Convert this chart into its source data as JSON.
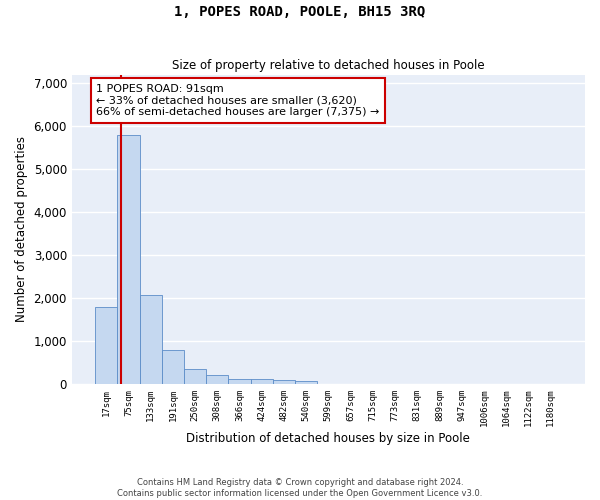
{
  "title": "1, POPES ROAD, POOLE, BH15 3RQ",
  "subtitle": "Size of property relative to detached houses in Poole",
  "xlabel": "Distribution of detached houses by size in Poole",
  "ylabel": "Number of detached properties",
  "categories": [
    "17sqm",
    "75sqm",
    "133sqm",
    "191sqm",
    "250sqm",
    "308sqm",
    "366sqm",
    "424sqm",
    "482sqm",
    "540sqm",
    "599sqm",
    "657sqm",
    "715sqm",
    "773sqm",
    "831sqm",
    "889sqm",
    "947sqm",
    "1006sqm",
    "1064sqm",
    "1122sqm",
    "1180sqm"
  ],
  "values": [
    1780,
    5800,
    2080,
    800,
    340,
    200,
    120,
    110,
    90,
    65,
    0,
    0,
    0,
    0,
    0,
    0,
    0,
    0,
    0,
    0,
    0
  ],
  "bar_color": "#c5d8f0",
  "bar_edgecolor": "#5b8cc8",
  "vline_x_index": 1,
  "vline_color": "#cc0000",
  "annotation_text": "1 POPES ROAD: 91sqm\n← 33% of detached houses are smaller (3,620)\n66% of semi-detached houses are larger (7,375) →",
  "annotation_box_color": "#ffffff",
  "annotation_box_edgecolor": "#cc0000",
  "ylim": [
    0,
    7200
  ],
  "yticks": [
    0,
    1000,
    2000,
    3000,
    4000,
    5000,
    6000,
    7000
  ],
  "background_color": "#e8eef8",
  "grid_color": "#ffffff",
  "footer_line1": "Contains HM Land Registry data © Crown copyright and database right 2024.",
  "footer_line2": "Contains public sector information licensed under the Open Government Licence v3.0."
}
